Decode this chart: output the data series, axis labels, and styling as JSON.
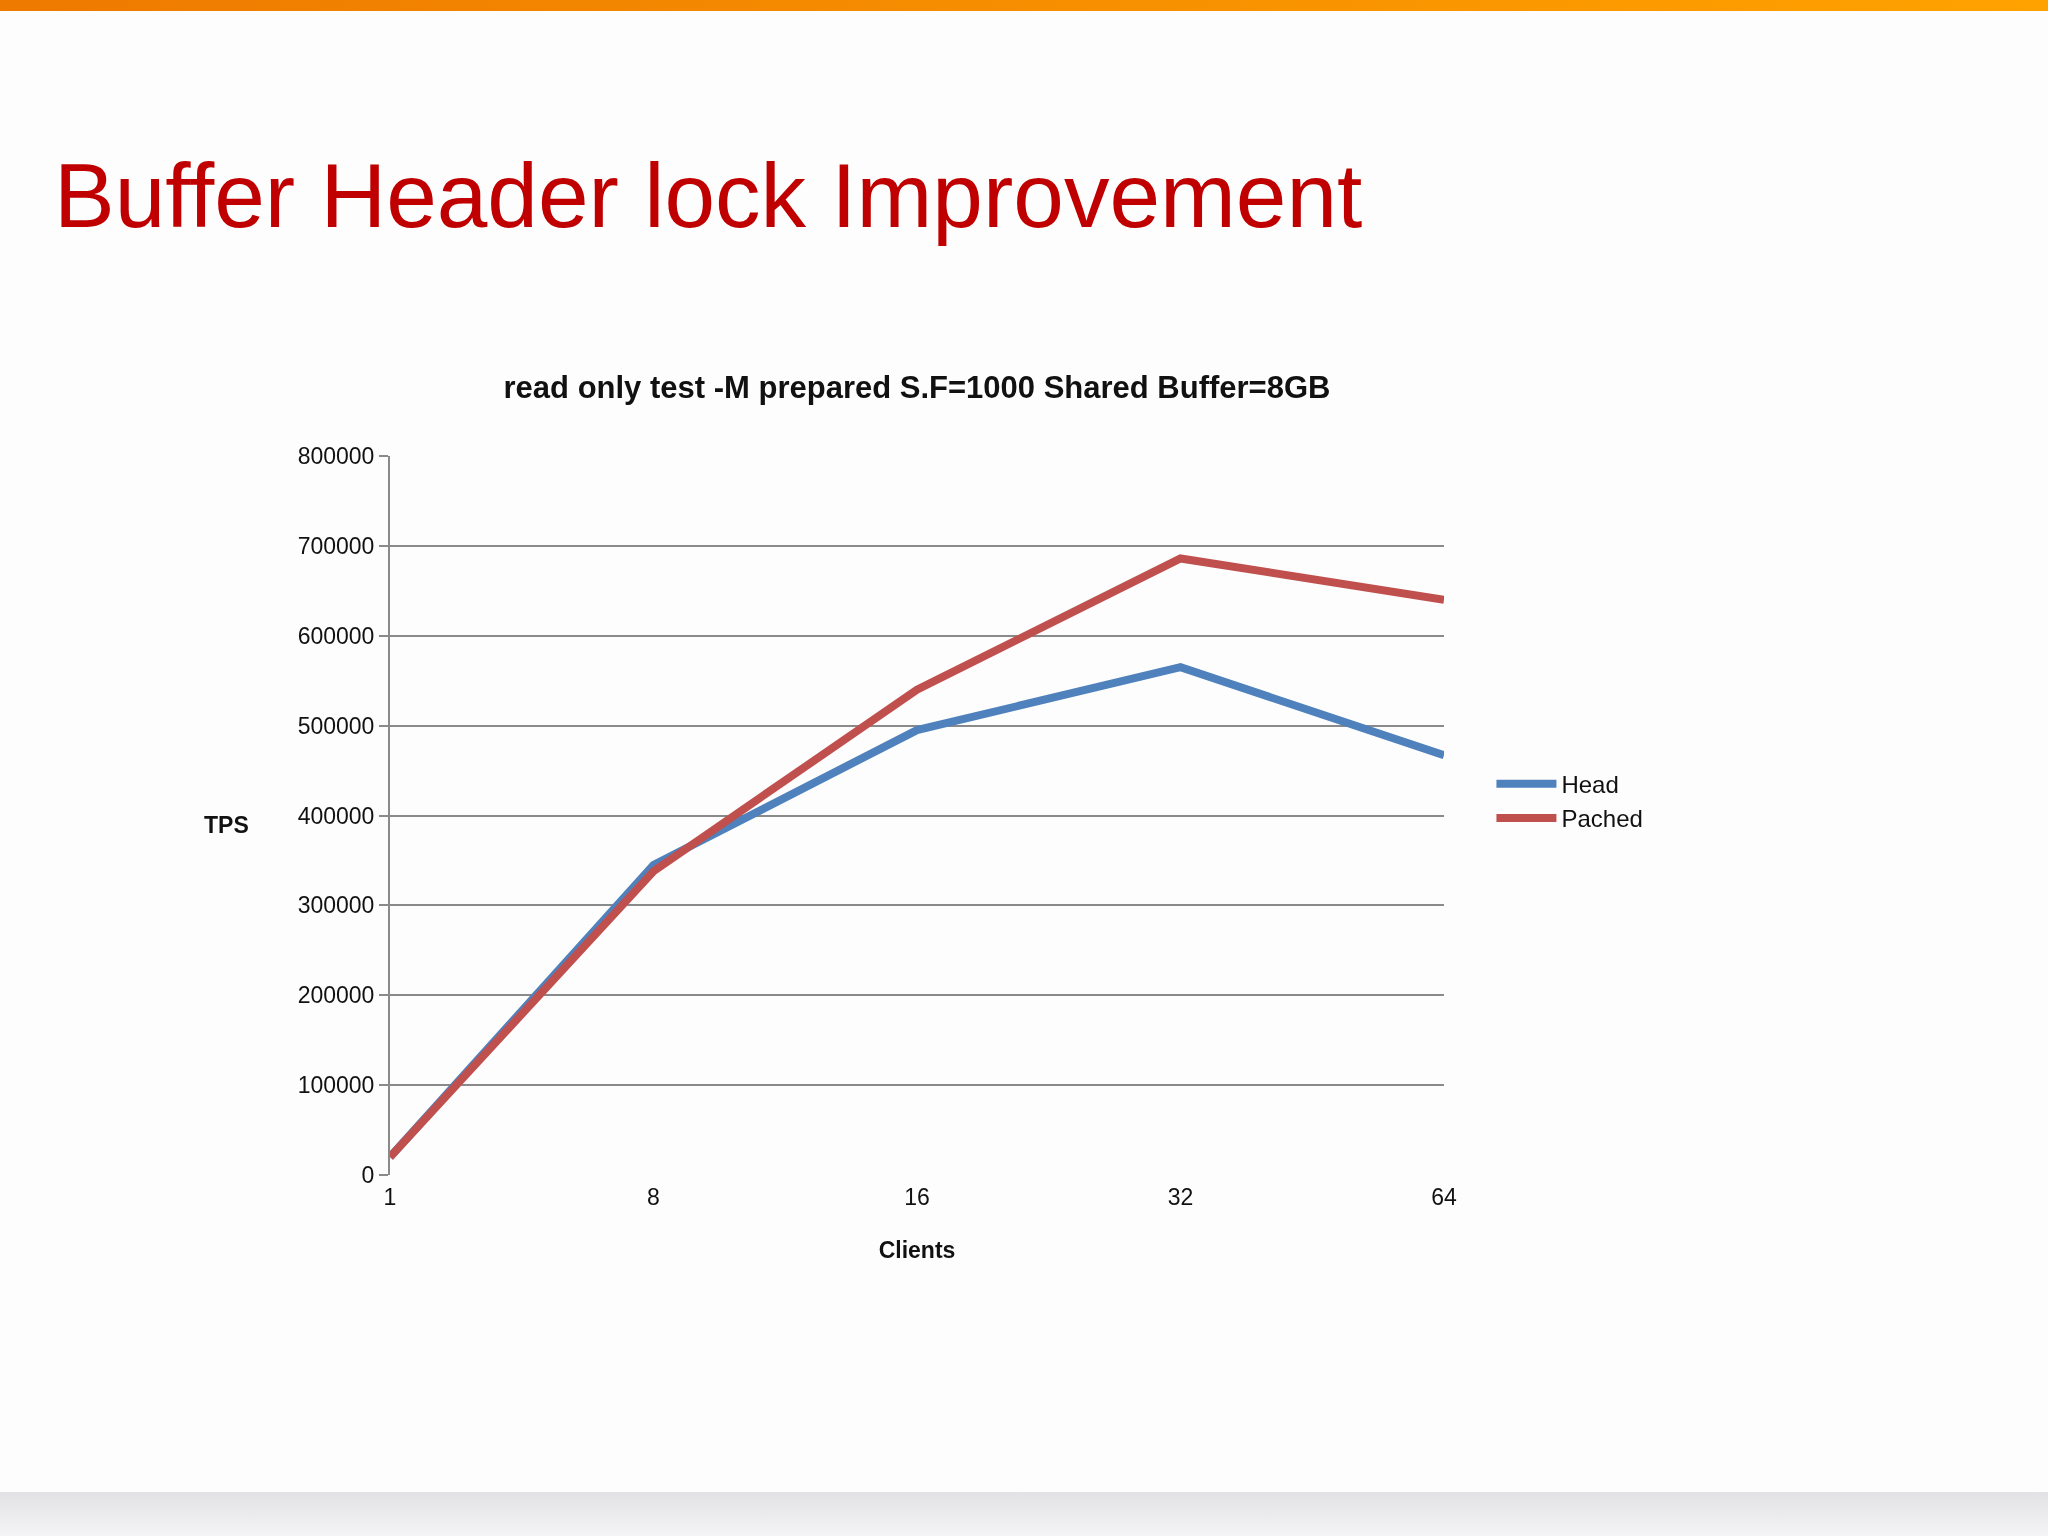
{
  "chart_data": {
    "type": "line",
    "title": "Buffer Header lock Improvement",
    "subtitle": "read only test -M prepared S.F=1000 Shared Buffer=8GB",
    "xlabel": "Clients",
    "ylabel": "TPS",
    "categories": [
      "1",
      "8",
      "16",
      "32",
      "64"
    ],
    "series": [
      {
        "name": "Head",
        "color": "#4f81bd",
        "values": [
          20000,
          345000,
          495000,
          565000,
          467000
        ]
      },
      {
        "name": "Pached",
        "color": "#c0504d",
        "values": [
          20000,
          338000,
          540000,
          686000,
          640000
        ]
      }
    ],
    "ylim": [
      0,
      800000
    ],
    "yticks": [
      0,
      100000,
      200000,
      300000,
      400000,
      500000,
      600000,
      700000,
      800000
    ],
    "grid": "y",
    "legend": "right",
    "marker": "none",
    "line_style": "solid"
  }
}
